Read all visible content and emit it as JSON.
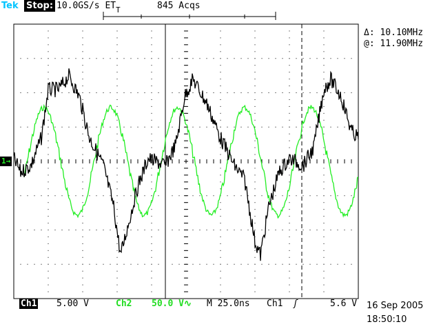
{
  "header": {
    "brand": "Tek",
    "run_state": "Stop:",
    "sample_rate": "10.0GS/s ET",
    "acquisitions": "845 Acqs",
    "trigger_marker": "T"
  },
  "cursor_readout": {
    "delta": "Δ: 10.10MHz",
    "at": "@: 11.90MHz"
  },
  "ground_marker": "1→",
  "footer": {
    "ch1_label": "Ch1",
    "ch1_scale": "5.00 V",
    "ch2_label": "Ch2",
    "ch2_scale": "50.0 V∿",
    "timebase": "M 25.0ns",
    "trigger_source": "Ch1",
    "trigger_slope": "ʃ",
    "trigger_level": "5.6 V",
    "date": "16 Sep 2005",
    "time": "18:50:10"
  },
  "colors": {
    "ch1": "#000000",
    "ch2": "#22ee22",
    "brand": "#00c4ff",
    "background": "#ffffff"
  }
}
